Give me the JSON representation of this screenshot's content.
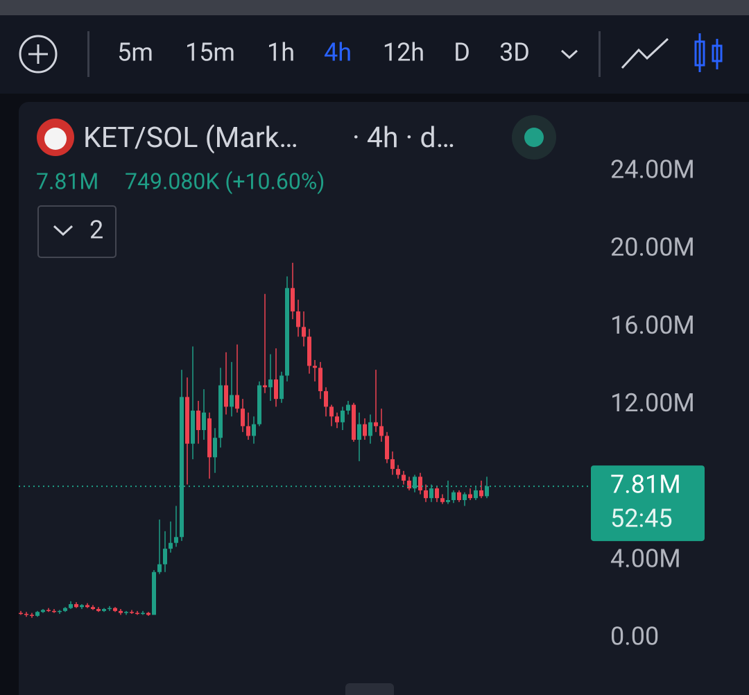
{
  "toolbar": {
    "intervals": [
      "5m",
      "15m",
      "1h",
      "4h",
      "12h",
      "D",
      "3D"
    ],
    "selected": 3
  },
  "legend": {
    "symbol": "KET/SOL (Mark…",
    "meta": "· 4h · d…",
    "price": "7.81M",
    "change": "749.080K (+10.60%)",
    "indicators": "2"
  },
  "chart_data": {
    "type": "candlestick",
    "open": [
      1300000,
      1250000,
      1200000,
      1150000,
      1350000,
      1450000,
      1400000,
      1350000,
      1400000,
      1550000,
      1750000,
      1600000,
      1700000,
      1600000,
      1500000,
      1400000,
      1500000,
      1550000,
      1400000,
      1300000,
      1350000,
      1300000,
      1250000,
      1300000,
      1200000,
      3400000,
      3800000,
      4600000,
      4900000,
      5200000,
      12400000,
      10000000,
      11700000,
      10700000,
      11300000,
      9300000,
      10300000,
      13000000,
      11900000,
      12500000,
      11800000,
      10900000,
      10400000,
      11000000,
      13000000,
      12900000,
      13300000,
      12300000,
      13500000,
      18000000,
      16800000,
      16000000,
      15500000,
      14000000,
      13900000,
      12700000,
      11900000,
      11400000,
      11100000,
      11700000,
      12000000,
      10200000,
      11000000,
      10400000,
      11100000,
      10900000,
      10400000,
      9200000,
      8700000,
      8400000,
      8100000,
      7700000,
      8300000,
      7600000,
      7200000,
      7700000,
      7200000,
      7000000,
      7100000,
      7500000,
      7100000,
      7400000,
      7200000,
      7600000,
      7300000
    ],
    "high": [
      1400000,
      1350000,
      1300000,
      1400000,
      1500000,
      1550000,
      1500000,
      1450000,
      1600000,
      1900000,
      1850000,
      1750000,
      1800000,
      1700000,
      1600000,
      1550000,
      1650000,
      1600000,
      1500000,
      1400000,
      1450000,
      1400000,
      1400000,
      1350000,
      3500000,
      6100000,
      5500000,
      6000000,
      6800000,
      13800000,
      13400000,
      15000000,
      12200000,
      12800000,
      11600000,
      10800000,
      13900000,
      14700000,
      14200000,
      15100000,
      12300000,
      11600000,
      11400000,
      13200000,
      17700000,
      14600000,
      14900000,
      13700000,
      18600000,
      19300000,
      17400000,
      16800000,
      15900000,
      14300000,
      14200000,
      12900000,
      12000000,
      11600000,
      11900000,
      12200000,
      12100000,
      11600000,
      11300000,
      11500000,
      13800000,
      11800000,
      10600000,
      9600000,
      8900000,
      8600000,
      8300000,
      8400000,
      8500000,
      7900000,
      7900000,
      7800000,
      7400000,
      8100000,
      7600000,
      7600000,
      7500000,
      7700000,
      7800000,
      8100000,
      8300000
    ],
    "low": [
      1200000,
      1100000,
      1050000,
      1100000,
      1300000,
      1350000,
      1300000,
      1250000,
      1350000,
      1500000,
      1550000,
      1500000,
      1550000,
      1450000,
      1350000,
      1350000,
      1400000,
      1350000,
      1200000,
      1200000,
      1250000,
      1200000,
      1200000,
      1150000,
      1200000,
      3300000,
      3400000,
      4400000,
      4700000,
      5000000,
      7900000,
      9200000,
      10000000,
      10200000,
      8200000,
      8500000,
      9800000,
      11500000,
      11400000,
      11600000,
      10600000,
      10200000,
      10000000,
      10900000,
      12600000,
      12200000,
      11900000,
      12100000,
      13200000,
      16400000,
      15500000,
      15000000,
      13600000,
      13200000,
      12300000,
      11400000,
      10900000,
      10800000,
      10700000,
      11500000,
      10100000,
      9100000,
      10200000,
      10000000,
      10600000,
      10100000,
      9000000,
      8400000,
      8200000,
      7900000,
      7600000,
      7500000,
      7400000,
      7000000,
      7000000,
      7000000,
      6900000,
      6900000,
      6950000,
      7000000,
      6800000,
      7100000,
      7100000,
      7200000,
      7200000
    ],
    "close": [
      1250000,
      1200000,
      1150000,
      1350000,
      1450000,
      1400000,
      1350000,
      1400000,
      1550000,
      1750000,
      1600000,
      1700000,
      1600000,
      1500000,
      1400000,
      1500000,
      1550000,
      1400000,
      1300000,
      1350000,
      1300000,
      1250000,
      1300000,
      1200000,
      3400000,
      3800000,
      4600000,
      4900000,
      5200000,
      12400000,
      10000000,
      11700000,
      10700000,
      11600000,
      9300000,
      10300000,
      13000000,
      11900000,
      12500000,
      11800000,
      10900000,
      10400000,
      11000000,
      13000000,
      12900000,
      13300000,
      12300000,
      13500000,
      18000000,
      16800000,
      16000000,
      15500000,
      14000000,
      13900000,
      12700000,
      11900000,
      11400000,
      11100000,
      11700000,
      12000000,
      10200000,
      11000000,
      10400000,
      11100000,
      10900000,
      10400000,
      9200000,
      8700000,
      8400000,
      8100000,
      7700000,
      8300000,
      7600000,
      7200000,
      7700000,
      7200000,
      7000000,
      7100000,
      7500000,
      7100000,
      7400000,
      7200000,
      7600000,
      7300000,
      7810000
    ],
    "up_color": "#1f9e86",
    "down_color": "#ef4351",
    "ylim": [
      -2920000,
      27460000
    ],
    "yticks": [
      {
        "value": 0,
        "label": "0.00"
      },
      {
        "value": 4000000,
        "label": "4.00M"
      },
      {
        "value": 12000000,
        "label": "12.00M"
      },
      {
        "value": 16000000,
        "label": "16.00M"
      },
      {
        "value": 20000000,
        "label": "20.00M"
      },
      {
        "value": 24000000,
        "label": "24.00M"
      }
    ],
    "last_price": {
      "value": 7810000,
      "label": "7.81M"
    },
    "countdown": "52:45"
  }
}
